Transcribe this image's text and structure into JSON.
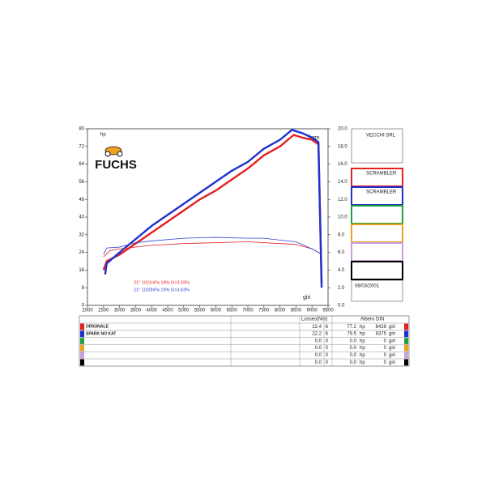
{
  "chart_data": {
    "type": "line",
    "logo": "FUCHS",
    "hp_label": "hp",
    "torque_label": "kgm",
    "x_label": "giri",
    "xlim": [
      2000,
      9500
    ],
    "xticks": [
      2000,
      2500,
      3000,
      3500,
      4000,
      4500,
      5000,
      5500,
      6000,
      6500,
      7000,
      7500,
      8000,
      8500,
      9000,
      9500
    ],
    "ylim": [
      0,
      80
    ],
    "yticks": [
      0,
      8,
      16,
      24,
      32,
      40,
      48,
      56,
      64,
      72,
      80
    ],
    "y2lim": [
      0,
      20
    ],
    "y2ticks": [
      {
        "value": 0,
        "label": "0.0"
      },
      {
        "value": 2,
        "label": "2.0"
      },
      {
        "value": 4,
        "label": "4.0"
      },
      {
        "value": 6,
        "label": "6.0"
      },
      {
        "value": 8,
        "label": "8.0"
      },
      {
        "value": 10,
        "label": "10.0"
      },
      {
        "value": 12,
        "label": "12.0"
      },
      {
        "value": 14,
        "label": "14.0"
      },
      {
        "value": 16,
        "label": "16.0"
      },
      {
        "value": 18,
        "label": "18.0"
      },
      {
        "value": 20,
        "label": "20.0"
      }
    ],
    "annotations": [
      {
        "text": "21°  1021hPa  18%   G=3.59%",
        "color": "#e52020"
      },
      {
        "text": "21°  1020hPa  19%   G=3.63%",
        "color": "#3040d0"
      }
    ],
    "series": [
      {
        "name": "ORIGINALE",
        "color": "#e52020",
        "width": 2.4,
        "x": [
          2500,
          2600,
          3000,
          3500,
          4000,
          4500,
          5000,
          5500,
          6000,
          6500,
          7000,
          7500,
          8000,
          8428,
          8700,
          9000,
          9200,
          9300
        ],
        "values": [
          16,
          20,
          23,
          28,
          33,
          38,
          43,
          48,
          52,
          57,
          62,
          68,
          72,
          77.2,
          76,
          75,
          73,
          10
        ]
      },
      {
        "name": "SPARK NO KAT",
        "color": "#2030d0",
        "width": 2.4,
        "x": [
          2550,
          2600,
          3000,
          3500,
          4000,
          4500,
          5000,
          5500,
          6000,
          6500,
          7000,
          7500,
          8000,
          8375,
          8700,
          9000,
          9200,
          9300
        ],
        "values": [
          14,
          19,
          24,
          30,
          36,
          41,
          46,
          51,
          56,
          61,
          65,
          71,
          75,
          79.5,
          78,
          76,
          74,
          8
        ]
      },
      {
        "color": "#e52020",
        "axis": "y2",
        "width": 0.8,
        "x": [
          2500,
          2700,
          3000,
          4000,
          5000,
          6000,
          7000,
          8000,
          8500,
          9000,
          9300
        ],
        "values": [
          5.5,
          6.2,
          6.4,
          6.8,
          7.0,
          7.1,
          7.2,
          7.0,
          6.9,
          6.4,
          5.8
        ]
      },
      {
        "color": "#3040d0",
        "axis": "y2",
        "width": 0.8,
        "x": [
          2500,
          2600,
          3000,
          3500,
          4000,
          5000,
          6000,
          7000,
          7500,
          8000,
          8500,
          9000,
          9300
        ],
        "values": [
          5.8,
          6.5,
          6.6,
          7.1,
          7.3,
          7.6,
          7.7,
          7.6,
          7.6,
          7.4,
          7.2,
          6.4,
          5.8
        ]
      }
    ]
  },
  "panel": {
    "company": "VECCHI SRL",
    "slots": [
      {
        "color": "#e52020",
        "label": "SCRAMBLER"
      },
      {
        "color": "#2030d0",
        "label": "SCRAMBLER"
      },
      {
        "color": "#20a040"
      },
      {
        "color": "#f0a020"
      },
      {
        "color": "#c8a0e0"
      },
      {
        "color": "#000000"
      }
    ],
    "date": "08/03/2001"
  },
  "table": {
    "losses_header": "Losses(Nm)",
    "power_header": "Albero DIN",
    "power_unit": "hp",
    "rpm_unit": "giri",
    "rows": [
      {
        "losses": "22.4",
        "n": "6",
        "power": "77.2",
        "rpm": "8428"
      },
      {
        "losses": "22.2",
        "n": "6",
        "power": "79.5",
        "rpm": "8375"
      },
      {
        "losses": "0.0",
        "n": "0",
        "power": "0.0",
        "rpm": "0"
      },
      {
        "losses": "0.0",
        "n": "0",
        "power": "0.0",
        "rpm": "0"
      },
      {
        "losses": "0.0",
        "n": "0",
        "power": "0.0",
        "rpm": "0"
      },
      {
        "losses": "0.0",
        "n": "0",
        "power": "0.0",
        "rpm": "0"
      }
    ]
  }
}
